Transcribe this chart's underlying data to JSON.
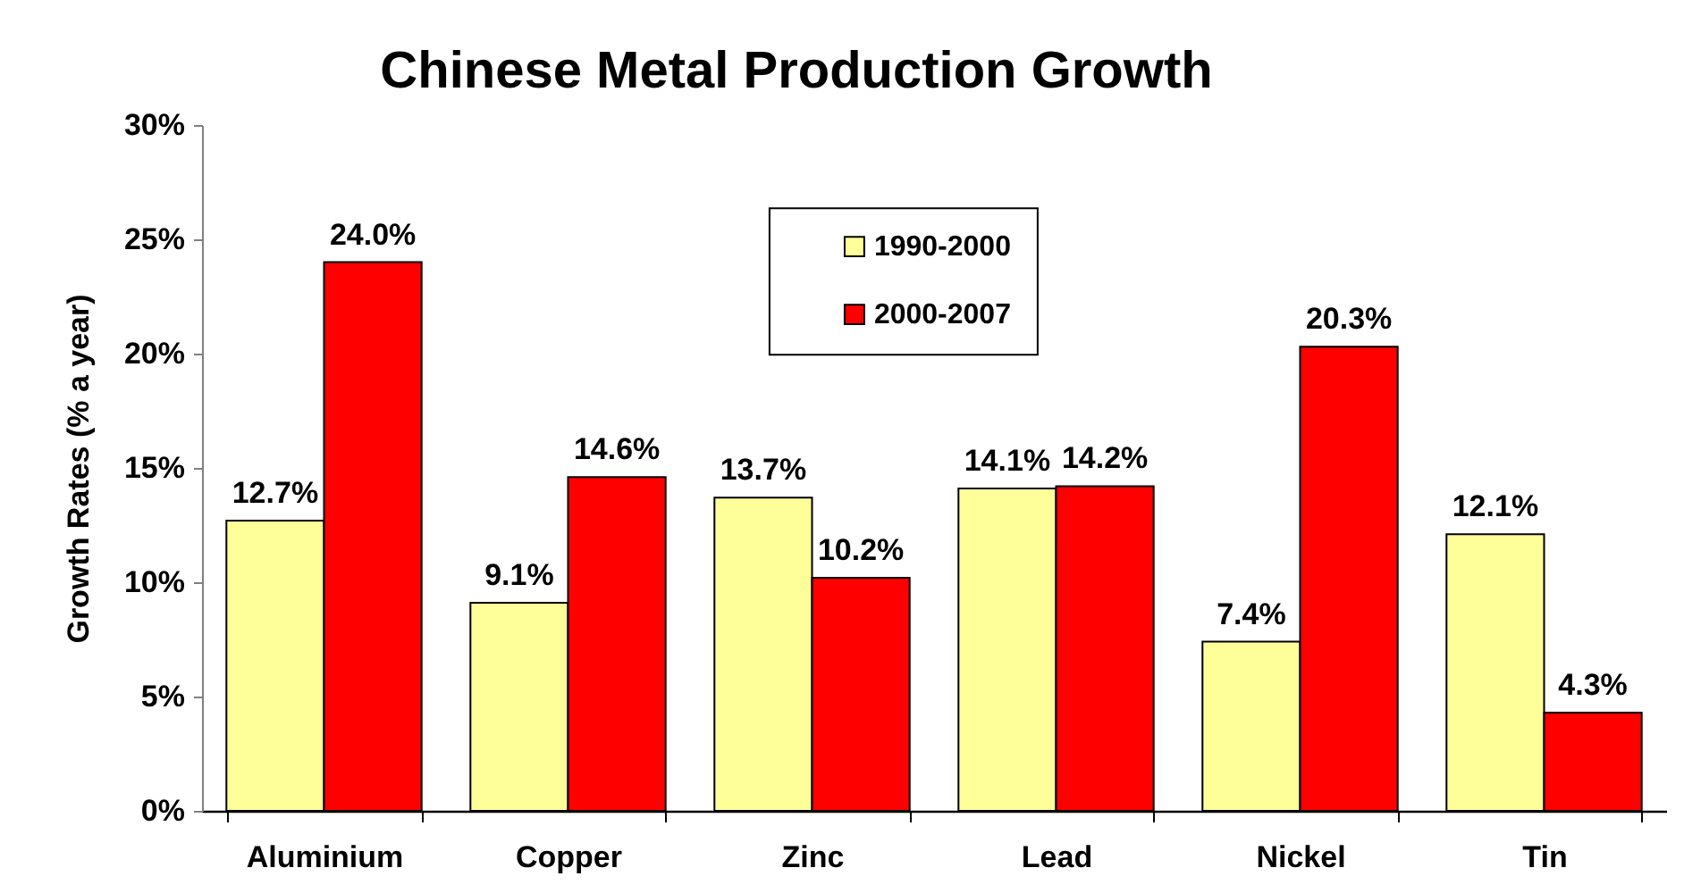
{
  "chart_data": {
    "type": "bar",
    "title": "Chinese Metal Production Growth",
    "ylabel": "Growth Rates (% a year)",
    "categories": [
      "Aluminium",
      "Copper",
      "Zinc",
      "Lead",
      "Nickel",
      "Tin"
    ],
    "series": [
      {
        "name": "1990-2000",
        "color": "#ffff99",
        "values": [
          12.7,
          9.1,
          13.7,
          14.1,
          7.4,
          12.1
        ],
        "value_labels": [
          "12.7%",
          "9.1%",
          "13.7%",
          "14.1%",
          "7.4%",
          "12.1%"
        ]
      },
      {
        "name": "2000-2007",
        "color": "#ff0000",
        "values": [
          24.0,
          14.6,
          10.2,
          14.2,
          20.3,
          4.3
        ],
        "value_labels": [
          "24.0%",
          "14.6%",
          "10.2%",
          "14.2%",
          "20.3%",
          "4.3%"
        ]
      }
    ],
    "ylim": [
      0,
      30
    ],
    "yticks": [
      {
        "value": 0,
        "label": "0%"
      },
      {
        "value": 5,
        "label": "5%"
      },
      {
        "value": 10,
        "label": "10%"
      },
      {
        "value": 15,
        "label": "15%"
      },
      {
        "value": 20,
        "label": "20%"
      },
      {
        "value": 25,
        "label": "25%"
      },
      {
        "value": 30,
        "label": "30%"
      }
    ],
    "legend": "top",
    "grid": false
  }
}
